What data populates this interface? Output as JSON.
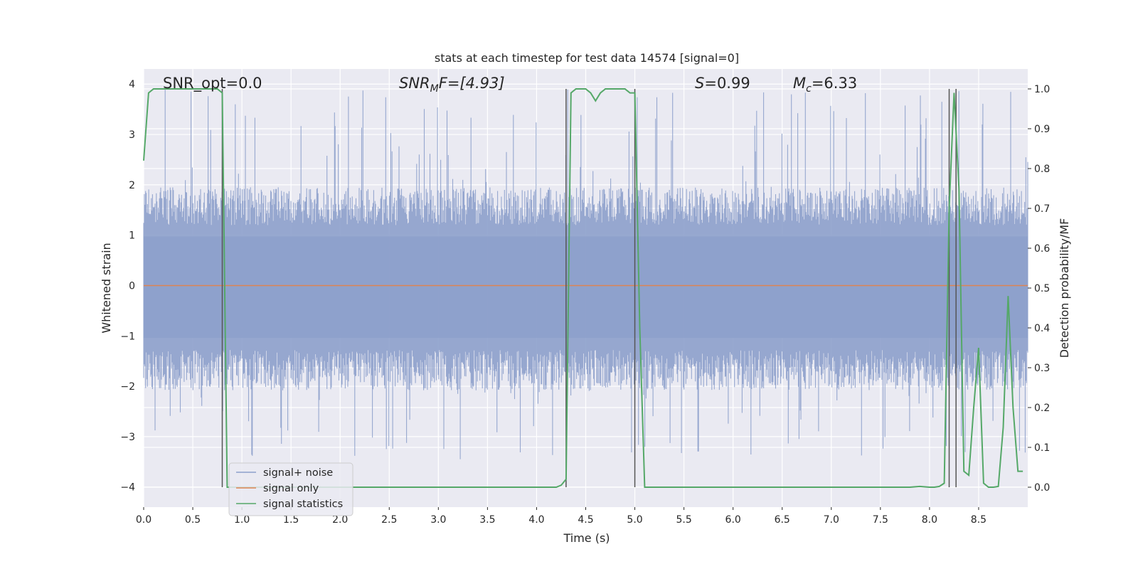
{
  "chart_data": {
    "type": "line",
    "title": "stats at each timestep for test data 14574 [signal=0]",
    "xlabel": "Time (s)",
    "ylabel": "Whitened strain",
    "y2label": "Detection probability/MF",
    "xlim": [
      0,
      9.0
    ],
    "ylim": [
      -4.4,
      4.3
    ],
    "y2lim": [
      -0.05,
      1.05
    ],
    "x_ticks": [
      "0.0",
      "0.5",
      "1.0",
      "1.5",
      "2.0",
      "2.5",
      "3.0",
      "3.5",
      "4.0",
      "4.5",
      "5.0",
      "5.5",
      "6.0",
      "6.5",
      "7.0",
      "7.5",
      "8.0",
      "8.5"
    ],
    "y_ticks": [
      "4",
      "3",
      "2",
      "1",
      "0",
      "−1",
      "−2",
      "−3",
      "−4"
    ],
    "y2_ticks": [
      "1.0",
      "0.9",
      "0.8",
      "0.7",
      "0.6",
      "0.5",
      "0.4",
      "0.3",
      "0.2",
      "0.1",
      "0.0"
    ],
    "grid": true,
    "annotations": {
      "snr_opt": "SNR_opt=0.0",
      "snr_mf_main": "SNR",
      "snr_mf_sub": "M",
      "snr_mf_rest": "F=[4.93]",
      "s_main": "S",
      "s_rest": "=0.99",
      "mc_main": "M",
      "mc_sub": "c",
      "mc_rest": "=6.33"
    },
    "legend": {
      "placement": "lower-left",
      "entries": [
        "signal+ noise",
        "signal only",
        "signal statistics"
      ]
    },
    "series": [
      {
        "name": "signal+ noise",
        "color": "#8da0cb",
        "noise_envelope": {
          "upper_typical": 1.5,
          "lower_typical": -1.6,
          "spike_max": 3.9,
          "spike_min": -3.5
        }
      },
      {
        "name": "signal only",
        "color": "#dd8452",
        "x": [
          0,
          9.0
        ],
        "y": [
          0,
          0
        ]
      },
      {
        "name": "signal statistics",
        "color": "#55a868",
        "x": [
          0,
          0.05,
          0.1,
          0.2,
          0.75,
          0.8,
          0.85,
          0.9,
          1.0,
          4.2,
          4.25,
          4.3,
          4.35,
          4.4,
          4.5,
          4.55,
          4.6,
          4.65,
          4.7,
          4.8,
          4.9,
          4.95,
          5.0,
          5.05,
          5.1,
          5.15,
          7.8,
          7.9,
          8.0,
          8.05,
          8.1,
          8.15,
          8.2,
          8.25,
          8.3,
          8.35,
          8.4,
          8.45,
          8.5,
          8.55,
          8.6,
          8.65,
          8.7,
          8.75,
          8.8,
          8.85,
          8.9,
          8.95
        ],
        "y": [
          0.82,
          0.99,
          1.0,
          1.0,
          1.0,
          0.99,
          0.0,
          0.0,
          0.0,
          0.0,
          0.005,
          0.02,
          0.99,
          1.0,
          1.0,
          0.99,
          0.97,
          0.99,
          1.0,
          1.0,
          1.0,
          0.99,
          0.99,
          0.4,
          0.0,
          0.0,
          0.0,
          0.002,
          0.0,
          0.0,
          0.002,
          0.01,
          0.7,
          0.99,
          0.75,
          0.04,
          0.03,
          0.2,
          0.35,
          0.01,
          0.0,
          0.0,
          0.002,
          0.15,
          0.48,
          0.2,
          0.04,
          0.04
        ]
      }
    ],
    "vertical_lines": [
      0.8,
      4.3,
      5.0,
      8.2,
      8.27
    ],
    "vline_color": "#555555",
    "background": "#eaeaf2",
    "grid_color": "#ffffff"
  }
}
